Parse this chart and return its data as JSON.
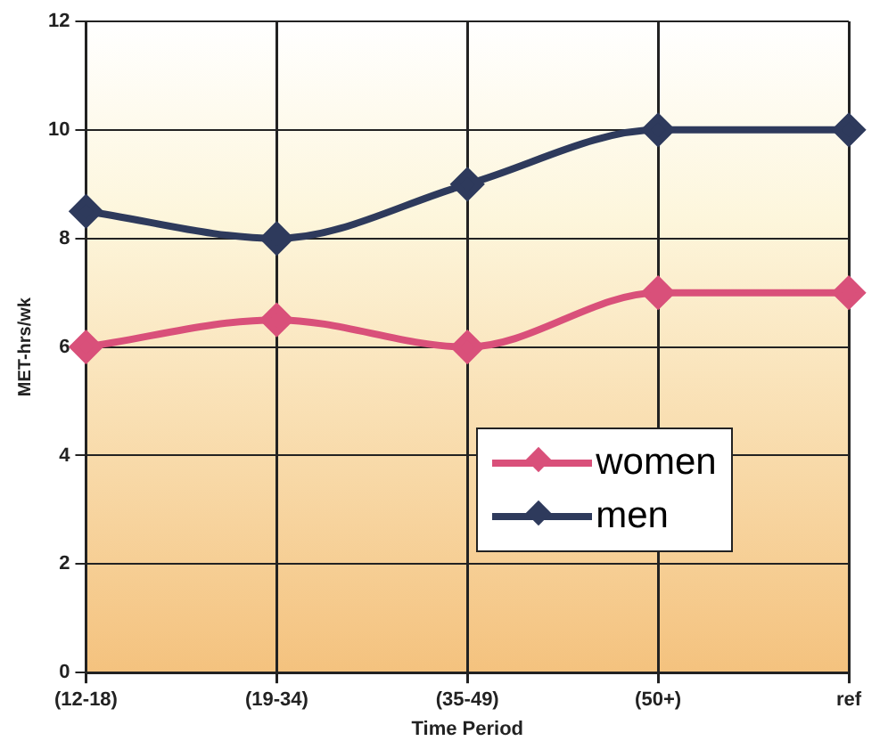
{
  "chart_data": {
    "type": "line",
    "xlabel": "Time Period",
    "ylabel": "MET-hrs/wk",
    "categories": [
      "(12-18)",
      "(19-34)",
      "(35-49)",
      "(50+)",
      "ref"
    ],
    "series": [
      {
        "name": "women",
        "color": "#d9507a",
        "values": [
          6,
          6.5,
          6,
          7,
          7
        ]
      },
      {
        "name": "men",
        "color": "#2e3a5c",
        "values": [
          8.5,
          8,
          9,
          10,
          10
        ]
      }
    ],
    "ylim": [
      0,
      12
    ],
    "yticks": [
      0,
      2,
      4,
      6,
      8,
      10,
      12
    ],
    "grid": true,
    "legend": "bottom right",
    "marker": "diamond",
    "line_style": "solid"
  }
}
